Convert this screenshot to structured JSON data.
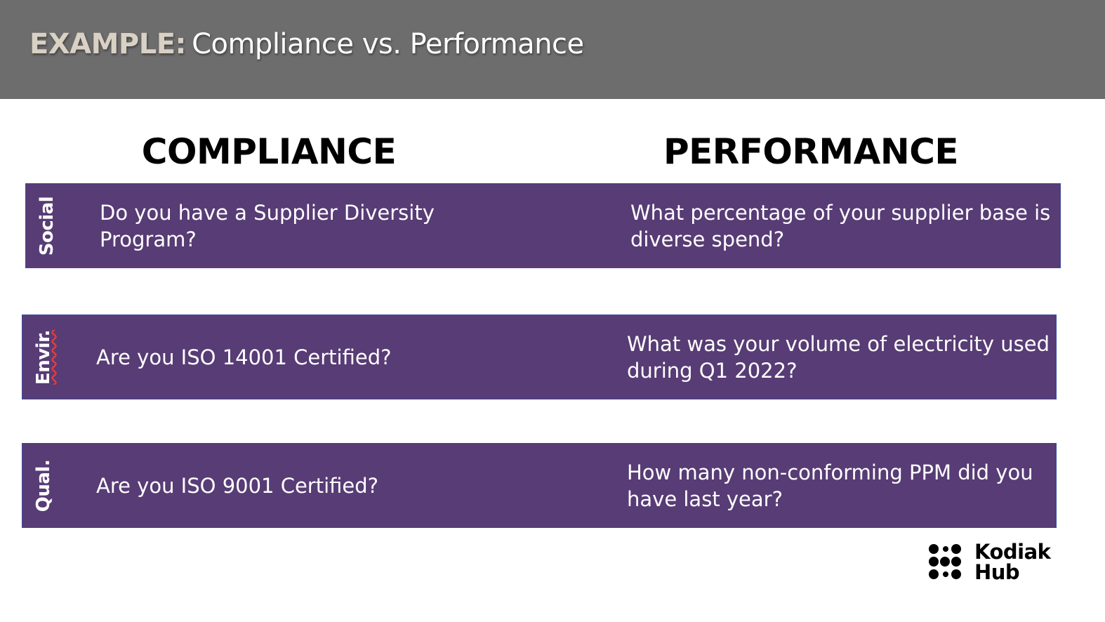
{
  "header": {
    "prefix": "EXAMPLE:",
    "title": "Compliance vs. Performance"
  },
  "columns": {
    "compliance": "COMPLIANCE",
    "performance": "PERFORMANCE"
  },
  "rows": [
    {
      "label": "Social",
      "compliance": "Do you have a Supplier Diversity Program?",
      "performance": "What percentage of your supplier base is diverse spend?"
    },
    {
      "label": "Envir.",
      "compliance": "Are you ISO 14001 Certified?",
      "performance": "What was your volume of electricity used during Q1 2022?"
    },
    {
      "label": "Qual.",
      "compliance": "Are you ISO 9001 Certified?",
      "performance": "How many non-conforming PPM did you have last year?"
    }
  ],
  "logo": {
    "line1": "Kodiak",
    "line2": "Hub"
  },
  "colors": {
    "header_bar": "#6e6d6e",
    "band": "#583c75",
    "band_border": "#3a4a9c",
    "prefix": "#d8d1c4"
  }
}
